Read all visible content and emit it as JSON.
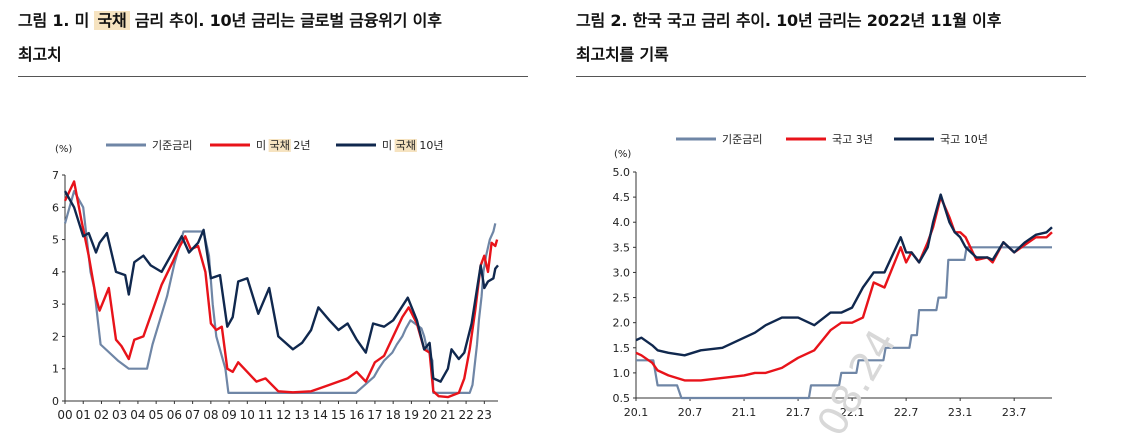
{
  "figures": [
    {
      "title_line1_before": "그림 1. 미 ",
      "title_line1_highlight": "국채",
      "title_line1_after": " 금리 추이. 10년 금리는 글로벌 금융위기 이후",
      "title_line2": "최고치"
    },
    {
      "title_line1": "그림 2. 한국 국고 금리 추이. 10년 금리는 2022년 11월 이후",
      "title_line2": "최고치를 기록"
    }
  ],
  "watermark": "08.24",
  "chart_data": [
    {
      "type": "line",
      "unit_label": "(%)",
      "ylim": [
        0,
        7
      ],
      "yticks": [
        "0",
        "1",
        "2",
        "3",
        "4",
        "5",
        "6",
        "7"
      ],
      "xticks": [
        "00",
        "01",
        "02",
        "03",
        "04",
        "05",
        "06",
        "07",
        "08",
        "09",
        "10",
        "11",
        "12",
        "13",
        "14",
        "15",
        "16",
        "17",
        "18",
        "19",
        "20",
        "21",
        "22",
        "23"
      ],
      "xlim": [
        2000.0,
        2023.75
      ],
      "legend_position": "top",
      "legend_highlight_color": "#f6e3c0",
      "series": [
        {
          "name": "기준금리",
          "legend_parts": [
            "기준금리"
          ],
          "color": "#6f86a6",
          "x": [
            2000.0,
            2000.5,
            2001.0,
            2001.2,
            2001.4,
            2001.6,
            2001.8,
            2001.95,
            2002.9,
            2003.5,
            2004.5,
            2004.8,
            2005.2,
            2005.6,
            2006.0,
            2006.5,
            2007.6,
            2007.9,
            2008.1,
            2008.3,
            2008.8,
            2008.96,
            2015.95,
            2016.95,
            2017.2,
            2017.5,
            2017.95,
            2018.2,
            2018.5,
            2018.7,
            2018.95,
            2019.55,
            2019.7,
            2019.8,
            2020.15,
            2020.2,
            2022.2,
            2022.35,
            2022.45,
            2022.6,
            2022.7,
            2022.85,
            2022.95,
            2023.1,
            2023.3,
            2023.5,
            2023.6
          ],
          "y": [
            5.5,
            6.5,
            6.0,
            5.0,
            4.0,
            3.5,
            2.5,
            1.75,
            1.25,
            1.0,
            1.0,
            1.75,
            2.5,
            3.25,
            4.25,
            5.25,
            5.25,
            4.5,
            3.0,
            2.0,
            1.0,
            0.25,
            0.25,
            0.75,
            1.0,
            1.25,
            1.5,
            1.75,
            2.0,
            2.25,
            2.5,
            2.25,
            2.0,
            1.75,
            1.25,
            0.25,
            0.25,
            0.5,
            1.0,
            1.75,
            2.5,
            3.25,
            4.0,
            4.5,
            5.0,
            5.25,
            5.5
          ]
        },
        {
          "name": "미 국채 2년",
          "legend_parts": [
            "미 ",
            "국채",
            " 2년"
          ],
          "color": "#e8131a",
          "x": [
            2000.0,
            2000.5,
            2000.9,
            2001.3,
            2001.7,
            2001.9,
            2002.4,
            2002.8,
            2003.1,
            2003.5,
            2003.8,
            2004.3,
            2004.8,
            2005.3,
            2005.9,
            2006.3,
            2006.6,
            2006.9,
            2007.3,
            2007.7,
            2008.0,
            2008.3,
            2008.6,
            2008.9,
            2009.2,
            2009.5,
            2010.0,
            2010.5,
            2011.0,
            2011.7,
            2012.5,
            2013.5,
            2014.0,
            2014.5,
            2015.0,
            2015.5,
            2016.0,
            2016.5,
            2017.0,
            2017.5,
            2018.0,
            2018.5,
            2018.85,
            2019.3,
            2019.7,
            2020.0,
            2020.2,
            2020.5,
            2021.0,
            2021.6,
            2021.9,
            2022.2,
            2022.5,
            2022.8,
            2023.0,
            2023.2,
            2023.4,
            2023.6,
            2023.7
          ],
          "y": [
            6.2,
            6.8,
            5.6,
            4.5,
            3.2,
            2.8,
            3.5,
            1.9,
            1.7,
            1.3,
            1.9,
            2.0,
            2.8,
            3.6,
            4.3,
            4.8,
            5.1,
            4.7,
            4.8,
            4.0,
            2.4,
            2.2,
            2.3,
            1.0,
            0.9,
            1.2,
            0.9,
            0.6,
            0.7,
            0.3,
            0.27,
            0.3,
            0.4,
            0.5,
            0.6,
            0.7,
            0.9,
            0.6,
            1.2,
            1.4,
            2.0,
            2.6,
            2.9,
            2.4,
            1.6,
            1.5,
            0.3,
            0.15,
            0.12,
            0.25,
            0.7,
            1.6,
            2.8,
            4.2,
            4.5,
            4.0,
            4.9,
            4.8,
            5.0
          ]
        },
        {
          "name": "미 국채 10년",
          "legend_parts": [
            "미 ",
            "국채",
            " 10년"
          ],
          "color": "#10284e",
          "x": [
            2000.0,
            2000.5,
            2001.0,
            2001.3,
            2001.7,
            2001.9,
            2002.3,
            2002.8,
            2003.3,
            2003.5,
            2003.8,
            2004.3,
            2004.7,
            2005.3,
            2005.8,
            2006.4,
            2006.8,
            2007.3,
            2007.6,
            2008.0,
            2008.5,
            2008.9,
            2009.2,
            2009.5,
            2010.0,
            2010.6,
            2011.2,
            2011.7,
            2012.5,
            2013.0,
            2013.5,
            2013.9,
            2014.5,
            2015.0,
            2015.5,
            2016.0,
            2016.5,
            2016.9,
            2017.5,
            2018.0,
            2018.8,
            2019.3,
            2019.7,
            2020.0,
            2020.2,
            2020.6,
            2021.0,
            2021.2,
            2021.6,
            2021.9,
            2022.3,
            2022.8,
            2023.0,
            2023.2,
            2023.5,
            2023.6,
            2023.75
          ],
          "y": [
            6.5,
            6.0,
            5.1,
            5.2,
            4.6,
            4.9,
            5.2,
            4.0,
            3.9,
            3.3,
            4.3,
            4.5,
            4.2,
            4.0,
            4.5,
            5.1,
            4.6,
            4.9,
            5.3,
            3.8,
            3.9,
            2.3,
            2.6,
            3.7,
            3.8,
            2.7,
            3.5,
            2.0,
            1.6,
            1.8,
            2.2,
            2.9,
            2.5,
            2.2,
            2.4,
            1.9,
            1.5,
            2.4,
            2.3,
            2.5,
            3.2,
            2.5,
            1.6,
            1.8,
            0.7,
            0.6,
            1.0,
            1.6,
            1.3,
            1.5,
            2.4,
            4.2,
            3.5,
            3.7,
            3.8,
            4.1,
            4.2
          ]
        }
      ]
    },
    {
      "type": "line",
      "unit_label": "(%)",
      "ylim": [
        0.5,
        5.0
      ],
      "yticks": [
        "0.5",
        "1.0",
        "1.5",
        "2.0",
        "2.5",
        "3.0",
        "3.5",
        "4.0",
        "4.5",
        "5.0"
      ],
      "xticks": [
        "20.1",
        "20.7",
        "21.1",
        "21.7",
        "22.1",
        "22.7",
        "23.1",
        "23.7"
      ],
      "xtick_positions": [
        2020.0,
        2020.5,
        2021.0,
        2021.5,
        2022.0,
        2022.5,
        2023.0,
        2023.5
      ],
      "xlim": [
        2020.0,
        2023.85
      ],
      "legend_position": "top",
      "series": [
        {
          "name": "기준금리",
          "color": "#6f86a6",
          "x": [
            2020.0,
            2020.16,
            2020.2,
            2020.38,
            2020.42,
            2021.6,
            2021.62,
            2021.88,
            2021.9,
            2022.04,
            2022.06,
            2022.29,
            2022.31,
            2022.53,
            2022.55,
            2022.6,
            2022.62,
            2022.78,
            2022.8,
            2022.87,
            2022.89,
            2023.04,
            2023.06,
            2023.85
          ],
          "y": [
            1.25,
            1.25,
            0.75,
            0.75,
            0.5,
            0.5,
            0.75,
            0.75,
            1.0,
            1.0,
            1.25,
            1.25,
            1.5,
            1.5,
            1.75,
            1.75,
            2.25,
            2.25,
            2.5,
            2.5,
            3.25,
            3.25,
            3.5,
            3.5
          ]
        },
        {
          "name": "국고 3년",
          "color": "#e8131a",
          "x": [
            2020.0,
            2020.05,
            2020.15,
            2020.2,
            2020.3,
            2020.45,
            2020.6,
            2020.8,
            2021.0,
            2021.1,
            2021.2,
            2021.35,
            2021.5,
            2021.65,
            2021.8,
            2021.9,
            2022.0,
            2022.1,
            2022.2,
            2022.3,
            2022.45,
            2022.5,
            2022.55,
            2022.62,
            2022.7,
            2022.75,
            2022.82,
            2022.9,
            2022.95,
            2023.0,
            2023.05,
            2023.15,
            2023.25,
            2023.3,
            2023.4,
            2023.5,
            2023.6,
            2023.7,
            2023.8,
            2023.85
          ],
          "y": [
            1.4,
            1.35,
            1.2,
            1.05,
            0.95,
            0.85,
            0.85,
            0.9,
            0.95,
            1.0,
            1.0,
            1.1,
            1.3,
            1.45,
            1.85,
            2.0,
            2.0,
            2.1,
            2.8,
            2.7,
            3.5,
            3.2,
            3.4,
            3.2,
            3.6,
            3.9,
            4.5,
            4.1,
            3.8,
            3.8,
            3.7,
            3.25,
            3.3,
            3.2,
            3.6,
            3.4,
            3.55,
            3.7,
            3.7,
            3.8
          ]
        },
        {
          "name": "국고 10년",
          "color": "#10284e",
          "x": [
            2020.0,
            2020.05,
            2020.15,
            2020.2,
            2020.3,
            2020.45,
            2020.6,
            2020.8,
            2021.0,
            2021.1,
            2021.2,
            2021.35,
            2021.5,
            2021.65,
            2021.8,
            2021.9,
            2022.0,
            2022.1,
            2022.2,
            2022.3,
            2022.45,
            2022.5,
            2022.55,
            2022.62,
            2022.7,
            2022.75,
            2022.82,
            2022.9,
            2022.95,
            2023.0,
            2023.05,
            2023.15,
            2023.25,
            2023.3,
            2023.4,
            2023.5,
            2023.6,
            2023.7,
            2023.8,
            2023.85
          ],
          "y": [
            1.65,
            1.7,
            1.55,
            1.45,
            1.4,
            1.35,
            1.45,
            1.5,
            1.7,
            1.8,
            1.95,
            2.1,
            2.1,
            1.95,
            2.2,
            2.2,
            2.3,
            2.7,
            3.0,
            3.0,
            3.7,
            3.4,
            3.4,
            3.2,
            3.5,
            4.0,
            4.55,
            4.0,
            3.8,
            3.7,
            3.5,
            3.3,
            3.3,
            3.25,
            3.6,
            3.4,
            3.6,
            3.75,
            3.8,
            3.9
          ]
        }
      ]
    }
  ]
}
